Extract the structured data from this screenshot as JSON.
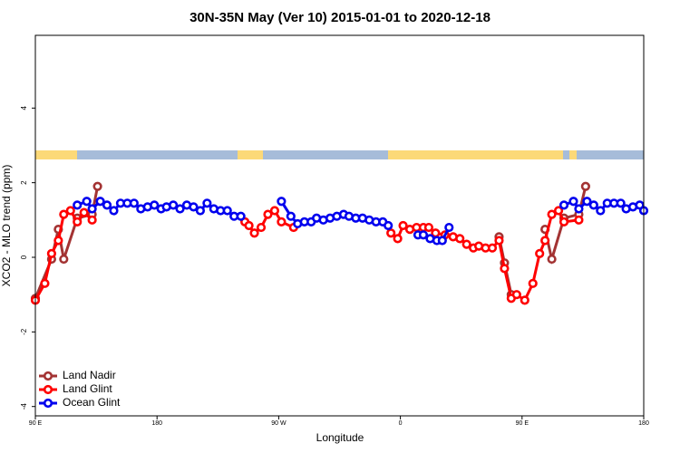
{
  "chart_data": {
    "type": "line",
    "title": "30N-35N May (Ver 10)   2015-01-01 to 2020-12-18",
    "x_label": "Longitude",
    "y_label": "XCO2 - MLO trend (ppm)",
    "xlim": [
      90,
      540
    ],
    "ylim": [
      -4.25,
      5.95
    ],
    "xticks": [
      {
        "value": 90,
        "label": "90 E"
      },
      180,
      {
        "value": 270,
        "label": "90 W"
      },
      {
        "value": 360,
        "label": "0"
      },
      {
        "value": 450,
        "label": "90 E"
      },
      {
        "value": 540,
        "label": "180"
      }
    ],
    "yticks": [
      -4,
      -2,
      0,
      2,
      4
    ],
    "legend": "bottom-left",
    "series": [
      {
        "name": "Land Nadir",
        "color": "#a33333",
        "x": [
          90,
          102,
          107,
          111,
          121,
          132,
          136,
          null,
          433,
          437,
          442,
          null,
          467,
          472,
          481,
          492,
          497
        ],
        "values": [
          -1.1,
          -0.05,
          0.75,
          -0.05,
          1.05,
          1.15,
          1.9,
          null,
          0.55,
          -0.15,
          -1.0,
          null,
          0.75,
          -0.05,
          1.05,
          1.15,
          1.9
        ]
      },
      {
        "name": "Land Glint",
        "color": "#ff0000",
        "x": [
          90,
          97,
          102,
          107,
          111,
          116,
          121,
          126,
          132,
          null,
          245,
          248,
          252,
          257,
          262,
          267,
          272,
          281,
          null,
          353,
          358,
          362,
          367,
          372,
          377,
          381,
          386,
          393,
          399,
          404,
          409,
          414,
          418,
          423,
          428,
          433,
          437,
          442,
          446,
          452,
          458,
          463,
          467,
          472,
          477,
          481,
          492
        ],
        "values": [
          -1.15,
          -0.7,
          0.1,
          0.45,
          1.15,
          1.25,
          0.95,
          1.2,
          1.0,
          null,
          0.95,
          0.85,
          0.65,
          0.8,
          1.15,
          1.25,
          0.95,
          0.8,
          null,
          0.65,
          0.5,
          0.85,
          0.75,
          0.8,
          0.8,
          0.8,
          0.65,
          0.6,
          0.55,
          0.5,
          0.35,
          0.25,
          0.3,
          0.25,
          0.25,
          0.45,
          -0.3,
          -1.1,
          -1.0,
          -1.15,
          -0.7,
          0.1,
          0.45,
          1.15,
          1.25,
          0.95,
          1.0
        ]
      },
      {
        "name": "Ocean Glint",
        "color": "#0000ee",
        "x": [
          121,
          128,
          132,
          138,
          143,
          148,
          153,
          158,
          163,
          168,
          173,
          178,
          183,
          187,
          192,
          197,
          202,
          207,
          212,
          217,
          222,
          227,
          232,
          237,
          242,
          null,
          272,
          279,
          284,
          289,
          294,
          298,
          303,
          308,
          313,
          318,
          322,
          327,
          332,
          337,
          342,
          347,
          351,
          null,
          373,
          377,
          382,
          387,
          391,
          396,
          null,
          481,
          488,
          492,
          498,
          503,
          508,
          513,
          518,
          523,
          527,
          532,
          537,
          540
        ],
        "values": [
          1.4,
          1.5,
          1.3,
          1.5,
          1.4,
          1.25,
          1.45,
          1.45,
          1.45,
          1.3,
          1.35,
          1.4,
          1.3,
          1.35,
          1.4,
          1.3,
          1.4,
          1.35,
          1.25,
          1.45,
          1.3,
          1.25,
          1.25,
          1.1,
          1.1,
          null,
          1.5,
          1.1,
          0.9,
          0.95,
          0.95,
          1.05,
          1.0,
          1.05,
          1.1,
          1.15,
          1.1,
          1.05,
          1.05,
          1.0,
          0.95,
          0.95,
          0.85,
          null,
          0.6,
          0.6,
          0.5,
          0.45,
          0.45,
          0.8,
          null,
          1.4,
          1.5,
          1.3,
          1.5,
          1.4,
          1.25,
          1.45,
          1.45,
          1.45,
          1.3,
          1.35,
          1.4,
          1.25
        ]
      }
    ]
  }
}
